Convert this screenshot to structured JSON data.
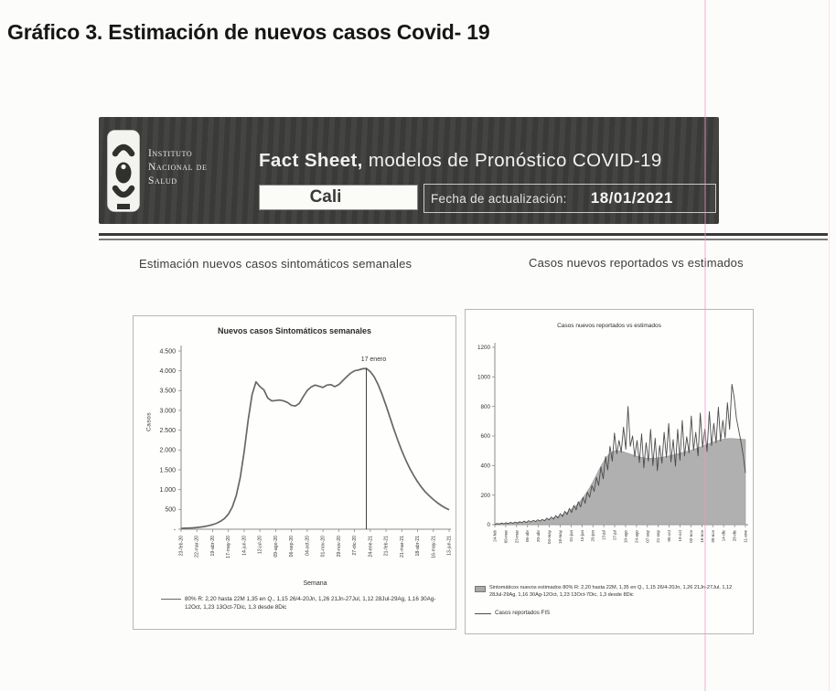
{
  "page": {
    "title": "Gráfico 3. Estimación de nuevos casos Covid- 19"
  },
  "header": {
    "org_lines": [
      "Instituto",
      "Nacional de",
      "Salud"
    ],
    "title_bold": "Fact Sheet,",
    "title_rest": " modelos de Pronóstico COVID-19",
    "city_value": "Cali",
    "update_label": "Fecha de actualización:",
    "update_date": "18/01/2021",
    "banner_bg": "#3d3d3c"
  },
  "sections": {
    "left_heading": "Estimación nuevos casos sintomáticos semanales",
    "right_heading": "Casos nuevos reportados vs estimados"
  },
  "chart_data": [
    {
      "type": "line",
      "title": "Nuevos casos Sintomáticos semanales",
      "xlabel": "Semana",
      "ylabel": "Casos",
      "ylim": [
        0,
        4500
      ],
      "grid": false,
      "legend_position": "bottom",
      "ytick_labels": [
        "4.500",
        "4.000",
        "3.500",
        "3.000",
        "2.500",
        "2.000",
        "1.500",
        "1.000",
        "500",
        "-"
      ],
      "ytick_values": [
        4500,
        4000,
        3500,
        3000,
        2500,
        2000,
        1500,
        1000,
        500,
        0
      ],
      "x_tick_labels": [
        "23-feb-20",
        "22-mar-20",
        "19-abr-20",
        "17-may-20",
        "14-jun-20",
        "12-jul-20",
        "09-ago-20",
        "06-sep-20",
        "04-oct-20",
        "01-nov-20",
        "29-nov-20",
        "27-dic-20",
        "24-ene-21",
        "21-feb-21",
        "21-mar-21",
        "18-abr-21",
        "16-may-21",
        "13-jun-21"
      ],
      "x_tick_every_weeks": 4,
      "weekly_values": [
        20,
        25,
        30,
        35,
        45,
        55,
        70,
        90,
        115,
        150,
        200,
        270,
        380,
        560,
        850,
        1300,
        1950,
        2750,
        3400,
        3720,
        3600,
        3520,
        3310,
        3240,
        3250,
        3260,
        3240,
        3200,
        3130,
        3110,
        3180,
        3350,
        3500,
        3590,
        3640,
        3610,
        3580,
        3640,
        3650,
        3600,
        3650,
        3750,
        3850,
        3940,
        4000,
        4020,
        4050,
        4060,
        3980,
        3850,
        3650,
        3400,
        3120,
        2820,
        2520,
        2240,
        1980,
        1750,
        1540,
        1360,
        1200,
        1060,
        940,
        840,
        750,
        670,
        600,
        540,
        490
      ],
      "annotation": {
        "label": "17 enero",
        "week_index": 47
      },
      "legend": "80% R: 2,20 hasta 22M 1,35 en Q., 1,15 26/4-20Jn, 1,26 21Jn-27Jul, 1,12 28Jul-29Ag, 1,16 30Ag-12Oct, 1,23 13Oct-7Dic, 1,3 desde 8Dic",
      "line_color": "#676767"
    },
    {
      "type": "area",
      "title": "Casos nuevos reportados vs estimados",
      "ylim": [
        0,
        1200
      ],
      "grid": false,
      "legend_position": "bottom",
      "ytick_labels": [
        "1200",
        "1000",
        "800",
        "600",
        "400",
        "200",
        "0"
      ],
      "ytick_values": [
        1200,
        1000,
        800,
        600,
        400,
        200,
        0
      ],
      "x_tick_labels": [
        "24-feb",
        "09-mar",
        "23-mar",
        "06-abr",
        "20-abr",
        "04-may",
        "18-may",
        "01-jun",
        "15-jun",
        "29-jun",
        "13-jul",
        "27-jul",
        "10-ago",
        "24-ago",
        "07-sep",
        "21-sep",
        "05-oct",
        "19-oct",
        "02-nov",
        "16-nov",
        "30-nov",
        "14-dic",
        "28-dic",
        "11-ene"
      ],
      "series": [
        {
          "name": "Sintomáticos nuevos estimados 80% R: 2,20 hasta 22M, 1,35 en Q., 1,15 26/4-20Jn, 1,26 21Jn-27Jul, 1,12 28Jul-29Ag, 1,16 30Ag-12Oct, 1,23 13Oct-7Dic, 1,3 desde 8Dic",
          "kind": "area",
          "color": "#a9a9a9",
          "values": [
            5,
            5,
            6,
            6,
            7,
            8,
            9,
            10,
            11,
            12,
            13,
            14,
            15,
            16,
            17,
            18,
            19,
            20,
            22,
            24,
            26,
            28,
            31,
            34,
            37,
            41,
            45,
            50,
            55,
            61,
            68,
            76,
            85,
            95,
            106,
            118,
            132,
            147,
            164,
            183,
            204,
            227,
            252,
            279,
            308,
            338,
            368,
            397,
            424,
            448,
            468,
            483,
            493,
            499,
            501,
            500,
            497,
            493,
            488,
            483,
            478,
            473,
            468,
            463,
            459,
            456,
            453,
            451,
            450,
            450,
            450,
            451,
            452,
            454,
            456,
            459,
            462,
            465,
            468,
            472,
            476,
            480,
            484,
            488,
            492,
            496,
            500,
            505,
            510,
            515,
            520,
            526,
            532,
            538,
            544,
            550,
            556,
            561,
            566,
            571,
            575,
            578,
            580,
            582,
            583,
            583,
            582,
            581,
            580,
            579,
            578,
            577
          ]
        },
        {
          "name": "Casos reportados FIS",
          "kind": "line",
          "color": "#4c4c4c",
          "values": [
            2,
            8,
            4,
            11,
            6,
            13,
            7,
            16,
            9,
            18,
            11,
            20,
            13,
            24,
            15,
            27,
            18,
            30,
            21,
            33,
            24,
            36,
            26,
            44,
            32,
            52,
            38,
            62,
            45,
            75,
            55,
            90,
            68,
            110,
            82,
            130,
            100,
            155,
            120,
            185,
            145,
            220,
            185,
            265,
            225,
            320,
            265,
            390,
            310,
            460,
            370,
            530,
            430,
            620,
            480,
            570,
            490,
            660,
            510,
            800,
            530,
            600,
            460,
            570,
            420,
            615,
            385,
            555,
            430,
            645,
            400,
            585,
            365,
            535,
            415,
            625,
            455,
            685,
            425,
            575,
            395,
            645,
            435,
            705,
            465,
            595,
            485,
            735,
            505,
            625,
            465,
            755,
            525,
            645,
            495,
            765,
            535,
            685,
            555,
            795,
            565,
            705,
            585,
            825,
            645,
            950,
            860,
            720,
            640,
            560,
            470,
            350
          ]
        }
      ]
    }
  ]
}
